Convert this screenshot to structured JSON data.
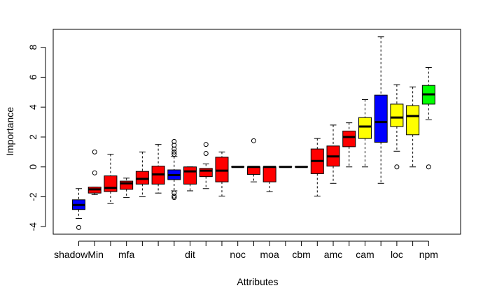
{
  "chart_data": {
    "type": "boxplot",
    "title": "",
    "xlabel": "Attributes",
    "ylabel": "Importance",
    "ylim": [
      -4.5,
      9.2
    ],
    "yticks": [
      -4,
      -2,
      0,
      2,
      4,
      6,
      8
    ],
    "ytick_labels": [
      "-4",
      "-2",
      "0",
      "2",
      "4",
      "6",
      "8"
    ],
    "colors": {
      "red": "#ff0000",
      "blue": "#0000ff",
      "yellow": "#ffff00",
      "green": "#00ff00"
    },
    "boxes": [
      {
        "label": "shadowMin",
        "color": "blue",
        "min": -3.45,
        "q1": -2.85,
        "median": -2.55,
        "q3": -2.2,
        "max": -1.45,
        "outliers": [
          -4.05
        ]
      },
      {
        "label": "",
        "color": "red",
        "min": -1.85,
        "q1": -1.75,
        "median": -1.5,
        "q3": -1.35,
        "max": -1.35,
        "outliers": [
          1.0,
          -0.4
        ]
      },
      {
        "label": "",
        "color": "red",
        "min": -2.45,
        "q1": -1.65,
        "median": -1.4,
        "q3": -0.6,
        "max": 0.85,
        "outliers": []
      },
      {
        "label": "mfa",
        "color": "red",
        "min": -2.05,
        "q1": -1.5,
        "median": -1.1,
        "q3": -0.95,
        "max": -0.75,
        "outliers": []
      },
      {
        "label": "",
        "color": "red",
        "min": -2.0,
        "q1": -1.15,
        "median": -0.8,
        "q3": -0.3,
        "max": 1.0,
        "outliers": []
      },
      {
        "label": "",
        "color": "red",
        "min": -1.75,
        "q1": -1.15,
        "median": -0.5,
        "q3": 0.05,
        "max": 1.5,
        "outliers": []
      },
      {
        "label": "",
        "color": "blue",
        "min": -1.6,
        "q1": -0.85,
        "median": -0.55,
        "q3": -0.2,
        "max": 0.7,
        "outliers": [
          1.7,
          1.45,
          1.2,
          1.0,
          0.85,
          -1.75,
          -1.95,
          -2.05
        ]
      },
      {
        "label": "dit",
        "color": "red",
        "min": -1.6,
        "q1": -1.15,
        "median": -0.3,
        "q3": 0.0,
        "max": 0.0,
        "outliers": []
      },
      {
        "label": "",
        "color": "red",
        "min": -1.45,
        "q1": -0.65,
        "median": -0.25,
        "q3": -0.1,
        "max": 0.2,
        "outliers": [
          1.5,
          0.9
        ]
      },
      {
        "label": "",
        "color": "red",
        "min": -1.95,
        "q1": -1.0,
        "median": -0.25,
        "q3": 0.65,
        "max": 1.0,
        "outliers": []
      },
      {
        "label": "noc",
        "color": "red",
        "min": 0.0,
        "q1": 0.0,
        "median": 0.0,
        "q3": 0.0,
        "max": 0.0,
        "outliers": []
      },
      {
        "label": "",
        "color": "red",
        "min": -1.0,
        "q1": -0.5,
        "median": 0.0,
        "q3": 0.0,
        "max": 0.0,
        "outliers": [
          1.75
        ]
      },
      {
        "label": "moa",
        "color": "red",
        "min": -1.65,
        "q1": -1.0,
        "median": 0.0,
        "q3": 0.0,
        "max": 0.0,
        "outliers": []
      },
      {
        "label": "",
        "color": "red",
        "min": 0.0,
        "q1": 0.0,
        "median": 0.0,
        "q3": 0.0,
        "max": 0.0,
        "outliers": []
      },
      {
        "label": "cbm",
        "color": "red",
        "min": 0.0,
        "q1": 0.0,
        "median": 0.0,
        "q3": 0.0,
        "max": 0.0,
        "outliers": []
      },
      {
        "label": "",
        "color": "red",
        "min": -1.95,
        "q1": -0.45,
        "median": 0.4,
        "q3": 1.2,
        "max": 1.9,
        "outliers": []
      },
      {
        "label": "amc",
        "color": "red",
        "min": -1.1,
        "q1": 0.05,
        "median": 0.7,
        "q3": 1.4,
        "max": 2.8,
        "outliers": []
      },
      {
        "label": "",
        "color": "red",
        "min": 0.0,
        "q1": 1.35,
        "median": 2.0,
        "q3": 2.4,
        "max": 2.95,
        "outliers": []
      },
      {
        "label": "cam",
        "color": "yellow",
        "min": 0.0,
        "q1": 1.9,
        "median": 2.7,
        "q3": 3.3,
        "max": 4.5,
        "outliers": []
      },
      {
        "label": "",
        "color": "blue",
        "min": -1.1,
        "q1": 1.65,
        "median": 3.0,
        "q3": 4.8,
        "max": 8.7,
        "outliers": []
      },
      {
        "label": "loc",
        "color": "yellow",
        "min": 1.05,
        "q1": 2.7,
        "median": 3.3,
        "q3": 4.2,
        "max": 5.5,
        "outliers": [
          0.0
        ]
      },
      {
        "label": "",
        "color": "yellow",
        "min": 0.0,
        "q1": 2.15,
        "median": 3.4,
        "q3": 4.1,
        "max": 5.35,
        "outliers": []
      },
      {
        "label": "npm",
        "color": "green",
        "min": 3.15,
        "q1": 4.2,
        "median": 4.85,
        "q3": 5.45,
        "max": 6.65,
        "outliers": [
          0.0
        ]
      }
    ]
  }
}
